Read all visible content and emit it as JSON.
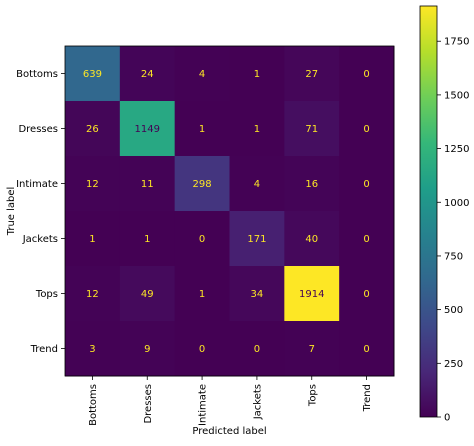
{
  "chart_data": {
    "type": "heatmap",
    "title": "",
    "xlabel": "Predicted label",
    "ylabel": "True label",
    "x_categories": [
      "Bottoms",
      "Dresses",
      "Intimate",
      "Jackets",
      "Tops",
      "Trend"
    ],
    "y_categories": [
      "Bottoms",
      "Dresses",
      "Intimate",
      "Jackets",
      "Tops",
      "Trend"
    ],
    "values": [
      [
        639,
        24,
        4,
        1,
        27,
        0
      ],
      [
        26,
        1149,
        1,
        1,
        71,
        0
      ],
      [
        12,
        11,
        298,
        4,
        16,
        0
      ],
      [
        1,
        1,
        0,
        171,
        40,
        0
      ],
      [
        12,
        49,
        1,
        34,
        1914,
        0
      ],
      [
        3,
        9,
        0,
        0,
        7,
        0
      ]
    ],
    "colormap": "viridis",
    "value_range": [
      0,
      1914
    ],
    "colorbar_ticks": [
      0,
      250,
      500,
      750,
      1000,
      1250,
      1500,
      1750
    ],
    "text_color_low": "#fde725",
    "text_color_high": "#440154"
  }
}
